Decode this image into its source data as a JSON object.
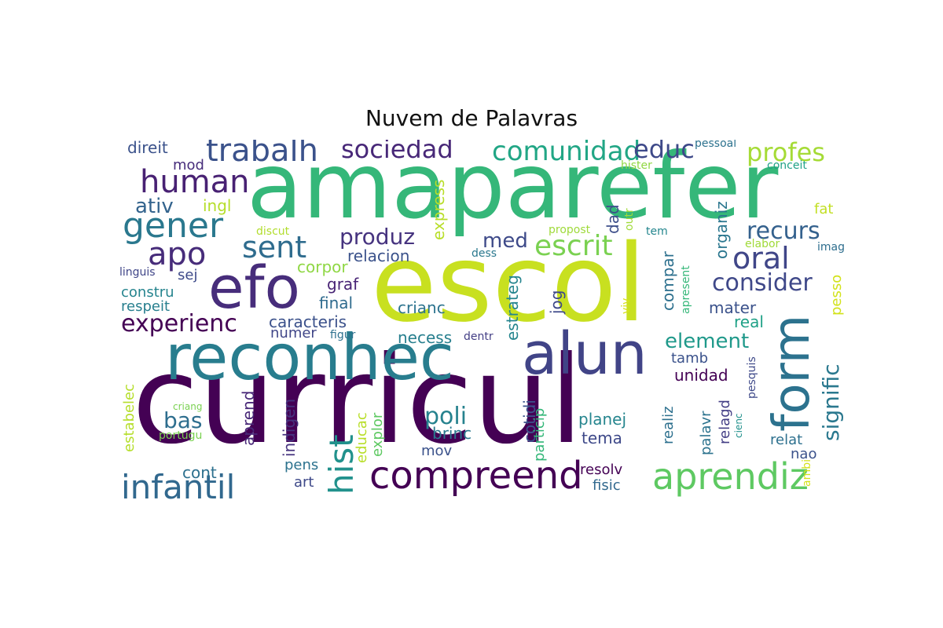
{
  "title": "Nuvem de Palavras",
  "words": {
    "curricul": {
      "text": "curricul",
      "color": "#440154"
    },
    "escol": {
      "text": "escol",
      "color": "#c8e020"
    },
    "amaparefer": {
      "text": "amaparefer",
      "color": "#35b779"
    },
    "reconhec": {
      "text": "reconhec",
      "color": "#287d8e"
    },
    "alun": {
      "text": "alun",
      "color": "#414487"
    },
    "efo": {
      "text": "efo",
      "color": "#472d7b"
    },
    "form": {
      "text": "form",
      "color": "#2c728e"
    },
    "compreend": {
      "text": "compreend",
      "color": "#440154"
    },
    "aprendiz": {
      "text": "aprendiz",
      "color": "#5ec962"
    },
    "infantil": {
      "text": "infantil",
      "color": "#31688e"
    },
    "hist": {
      "text": "hist",
      "color": "#21918c"
    },
    "trabalh": {
      "text": "trabalh",
      "color": "#3b528b"
    },
    "sociedad": {
      "text": "sociedad",
      "color": "#482878"
    },
    "comunidad": {
      "text": "comunidad",
      "color": "#21a685"
    },
    "educ": {
      "text": "educ",
      "color": "#3e4989"
    },
    "profes": {
      "text": "profes",
      "color": "#a5db36"
    },
    "human": {
      "text": "human",
      "color": "#482173"
    },
    "gener": {
      "text": "gener",
      "color": "#2a788e"
    },
    "apo": {
      "text": "apo",
      "color": "#472c7a"
    },
    "ativ": {
      "text": "ativ",
      "color": "#33638d"
    },
    "ingl": {
      "text": "ingl",
      "color": "#b5de2b"
    },
    "sent": {
      "text": "sent",
      "color": "#2f6c8e"
    },
    "produz": {
      "text": "produz",
      "color": "#46337f"
    },
    "escrit": {
      "text": "escrit",
      "color": "#7ad151"
    },
    "recurs": {
      "text": "recurs",
      "color": "#34618d"
    },
    "oral": {
      "text": "oral",
      "color": "#404688"
    },
    "consider": {
      "text": "consider",
      "color": "#3f4889"
    },
    "experienc": {
      "text": "experienc",
      "color": "#440154"
    },
    "element": {
      "text": "element",
      "color": "#1f998a"
    },
    "signific": {
      "text": "signific",
      "color": "#2a788e"
    },
    "poli": {
      "text": "poli",
      "color": "#26828e"
    },
    "bas": {
      "text": "bas",
      "color": "#2e6e8e"
    },
    "med": {
      "text": "med",
      "color": "#3e4a89"
    },
    "relacion": {
      "text": "relacion",
      "color": "#3b528b"
    },
    "corpor": {
      "text": "corpor",
      "color": "#8fd744"
    },
    "graf": {
      "text": "graf",
      "color": "#482475"
    },
    "final": {
      "text": "final",
      "color": "#2f6b8e"
    },
    "caracteris": {
      "text": "caracteris",
      "color": "#3b518b"
    },
    "numer": {
      "text": "numer",
      "color": "#404688"
    },
    "crianc": {
      "text": "crianc",
      "color": "#2c738e"
    },
    "necess": {
      "text": "necess",
      "color": "#277f8e"
    },
    "estrateg": {
      "text": "estrateg",
      "color": "#25858e"
    },
    "jog": {
      "text": "jog",
      "color": "#3e4989"
    },
    "dad": {
      "text": "dad",
      "color": "#3d4e8a"
    },
    "compar": {
      "text": "compar",
      "color": "#2d708e"
    },
    "organiz": {
      "text": "organiz",
      "color": "#2a768e"
    },
    "mater": {
      "text": "mater",
      "color": "#3b528b"
    },
    "real": {
      "text": "real",
      "color": "#1fa187"
    },
    "pesso": {
      "text": "pesso",
      "color": "#d2e21b"
    },
    "fat": {
      "text": "fat",
      "color": "#c2df23"
    },
    "express": {
      "text": "express",
      "color": "#b8de29"
    },
    "discut": {
      "text": "discut",
      "color": "#b2dd2d"
    },
    "propost": {
      "text": "propost",
      "color": "#9fda3a"
    },
    "tem": {
      "text": "tem",
      "color": "#24868e"
    },
    "outr": {
      "text": "outr",
      "color": "#a0da39"
    },
    "dess": {
      "text": "dess",
      "color": "#2a788e"
    },
    "apresent": {
      "text": "apresent",
      "color": "#35b779"
    },
    "viv": {
      "text": "viv",
      "color": "#d5e21a"
    },
    "elabor": {
      "text": "elabor",
      "color": "#a0da39"
    },
    "imag": {
      "text": "imag",
      "color": "#2e6e8e"
    },
    "hister": {
      "text": "hister",
      "color": "#90d743"
    },
    "conceit": {
      "text": "conceit",
      "color": "#1fa187"
    },
    "pessoal": {
      "text": "pessoal",
      "color": "#2c728e"
    },
    "direit": {
      "text": "direit",
      "color": "#3b528b"
    },
    "mod": {
      "text": "mod",
      "color": "#472d7b"
    },
    "linguis": {
      "text": "linguis",
      "color": "#404688"
    },
    "sej": {
      "text": "sej",
      "color": "#3e4a89"
    },
    "constru": {
      "text": "constru",
      "color": "#25848e"
    },
    "respeit": {
      "text": "respeit",
      "color": "#277f8e"
    },
    "figur": {
      "text": "figur",
      "color": "#2d708e"
    },
    "dentr": {
      "text": "dentr",
      "color": "#433e85"
    },
    "tamb": {
      "text": "tamb",
      "color": "#3b528b"
    },
    "unidad": {
      "text": "unidad",
      "color": "#440154"
    },
    "estabelec": {
      "text": "estabelec",
      "color": "#b5de2b"
    },
    "criang": {
      "text": "criang",
      "color": "#7ad151"
    },
    "portugu": {
      "text": "portugu",
      "color": "#7ad151"
    },
    "aprend": {
      "text": "aprend",
      "color": "#482878"
    },
    "indigen": {
      "text": "indigen",
      "color": "#46337f"
    },
    "educac": {
      "text": "educac",
      "color": "#b8de29"
    },
    "explor": {
      "text": "explor",
      "color": "#5ec962"
    },
    "brinc": {
      "text": "brinc",
      "color": "#2a788e"
    },
    "cotidi": {
      "text": "cotidi",
      "color": "#3b528b"
    },
    "particip": {
      "text": "particip",
      "color": "#35b779"
    },
    "planej": {
      "text": "planej",
      "color": "#25858e"
    },
    "tema": {
      "text": "tema",
      "color": "#3e4989"
    },
    "realiz": {
      "text": "realiz",
      "color": "#2d708e"
    },
    "palavr": {
      "text": "palavr",
      "color": "#2c738e"
    },
    "relagd": {
      "text": "relagd",
      "color": "#433e85"
    },
    "cienc": {
      "text": "cienc",
      "color": "#21918c"
    },
    "pesquis": {
      "text": "pesquis",
      "color": "#3e4989"
    },
    "relat": {
      "text": "relat",
      "color": "#2d708e"
    },
    "nao": {
      "text": "nao",
      "color": "#3b528b"
    },
    "ambi": {
      "text": "ambi",
      "color": "#d5e21a"
    },
    "mov": {
      "text": "mov",
      "color": "#3b528b"
    },
    "pens": {
      "text": "pens",
      "color": "#2c728e"
    },
    "art": {
      "text": "art",
      "color": "#3e4989"
    },
    "cont": {
      "text": "cont",
      "color": "#2d708e"
    },
    "resolv": {
      "text": "resolv",
      "color": "#440154"
    },
    "fisic": {
      "text": "fisic",
      "color": "#31688e"
    }
  }
}
